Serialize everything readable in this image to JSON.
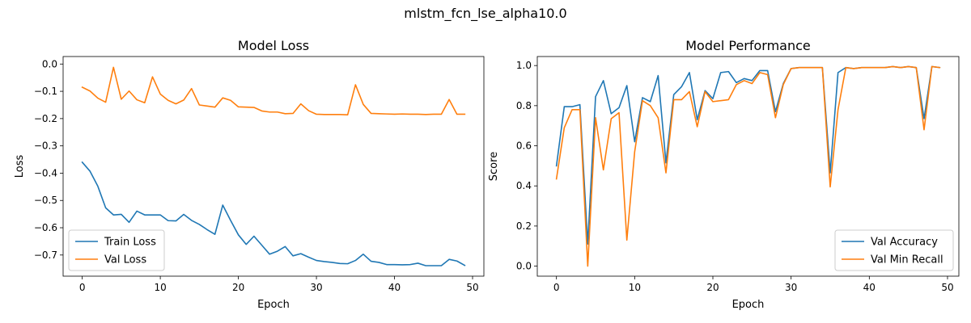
{
  "suptitle": "mlstm_fcn_lse_alpha10.0",
  "colors": {
    "blue": "#1f77b4",
    "orange": "#ff7f0e",
    "axis": "#000000",
    "legend_border": "#cccccc"
  },
  "chart_data": [
    {
      "type": "line",
      "title": "Model Loss",
      "xlabel": "Epoch",
      "ylabel": "Loss",
      "xlim": [
        -2.45,
        51.45
      ],
      "ylim": [
        -0.7775,
        0.0275
      ],
      "xticks": [
        0,
        10,
        20,
        30,
        40,
        50
      ],
      "xtick_labels": [
        "0",
        "10",
        "20",
        "30",
        "40",
        "50"
      ],
      "yticks": [
        -0.7,
        -0.6,
        -0.5,
        -0.4,
        -0.3,
        -0.2,
        -0.1,
        0.0
      ],
      "ytick_labels": [
        "−0.7",
        "−0.6",
        "−0.5",
        "−0.4",
        "−0.3",
        "−0.2",
        "−0.1",
        "0.0"
      ],
      "grid": false,
      "legend_position": "lower-left",
      "x": [
        0,
        1,
        2,
        3,
        4,
        5,
        6,
        7,
        8,
        9,
        10,
        11,
        12,
        13,
        14,
        15,
        16,
        17,
        18,
        19,
        20,
        21,
        22,
        23,
        24,
        25,
        26,
        27,
        28,
        29,
        30,
        31,
        32,
        33,
        34,
        35,
        36,
        37,
        38,
        39,
        40,
        41,
        42,
        43,
        44,
        45,
        46,
        47,
        48,
        49
      ],
      "series": [
        {
          "name": "Train Loss",
          "color": "#1f77b4",
          "values": [
            -0.36,
            -0.393,
            -0.448,
            -0.527,
            -0.553,
            -0.551,
            -0.58,
            -0.539,
            -0.553,
            -0.553,
            -0.553,
            -0.574,
            -0.575,
            -0.551,
            -0.573,
            -0.588,
            -0.607,
            -0.624,
            -0.517,
            -0.573,
            -0.626,
            -0.661,
            -0.631,
            -0.664,
            -0.697,
            -0.686,
            -0.669,
            -0.703,
            -0.695,
            -0.708,
            -0.72,
            -0.724,
            -0.727,
            -0.731,
            -0.732,
            -0.72,
            -0.697,
            -0.723,
            -0.727,
            -0.735,
            -0.735,
            -0.736,
            -0.735,
            -0.73,
            -0.739,
            -0.739,
            -0.739,
            -0.716,
            -0.722,
            -0.738
          ]
        },
        {
          "name": "Val Loss",
          "color": "#ff7f0e",
          "values": [
            -0.085,
            -0.099,
            -0.125,
            -0.14,
            -0.012,
            -0.129,
            -0.099,
            -0.131,
            -0.142,
            -0.047,
            -0.11,
            -0.133,
            -0.146,
            -0.132,
            -0.09,
            -0.15,
            -0.154,
            -0.158,
            -0.124,
            -0.133,
            -0.157,
            -0.158,
            -0.159,
            -0.172,
            -0.176,
            -0.176,
            -0.182,
            -0.181,
            -0.146,
            -0.171,
            -0.184,
            -0.185,
            -0.185,
            -0.185,
            -0.186,
            -0.076,
            -0.148,
            -0.181,
            -0.182,
            -0.183,
            -0.184,
            -0.183,
            -0.184,
            -0.184,
            -0.185,
            -0.184,
            -0.184,
            -0.13,
            -0.184,
            -0.184
          ]
        }
      ]
    },
    {
      "type": "line",
      "title": "Model Performance",
      "xlabel": "Epoch",
      "ylabel": "Score",
      "xlim": [
        -2.45,
        51.45
      ],
      "ylim": [
        -0.05,
        1.045
      ],
      "xticks": [
        0,
        10,
        20,
        30,
        40,
        50
      ],
      "xtick_labels": [
        "0",
        "10",
        "20",
        "30",
        "40",
        "50"
      ],
      "yticks": [
        0.0,
        0.2,
        0.4,
        0.6,
        0.8,
        1.0
      ],
      "ytick_labels": [
        "0.0",
        "0.2",
        "0.4",
        "0.6",
        "0.8",
        "1.0"
      ],
      "grid": false,
      "legend_position": "lower-right",
      "x": [
        0,
        1,
        2,
        3,
        4,
        5,
        6,
        7,
        8,
        9,
        10,
        11,
        12,
        13,
        14,
        15,
        16,
        17,
        18,
        19,
        20,
        21,
        22,
        23,
        24,
        25,
        26,
        27,
        28,
        29,
        30,
        31,
        32,
        33,
        34,
        35,
        36,
        37,
        38,
        39,
        40,
        41,
        42,
        43,
        44,
        45,
        46,
        47,
        48,
        49
      ],
      "series": [
        {
          "name": "Val Accuracy",
          "color": "#1f77b4",
          "values": [
            0.5,
            0.795,
            0.795,
            0.805,
            0.11,
            0.845,
            0.925,
            0.76,
            0.79,
            0.9,
            0.62,
            0.84,
            0.82,
            0.95,
            0.515,
            0.855,
            0.895,
            0.965,
            0.73,
            0.875,
            0.835,
            0.965,
            0.97,
            0.915,
            0.935,
            0.925,
            0.975,
            0.975,
            0.77,
            0.91,
            0.985,
            0.99,
            0.99,
            0.99,
            0.99,
            0.465,
            0.965,
            0.99,
            0.985,
            0.99,
            0.99,
            0.99,
            0.99,
            0.995,
            0.99,
            0.995,
            0.99,
            0.735,
            0.995,
            0.99
          ]
        },
        {
          "name": "Val Min Recall",
          "color": "#ff7f0e",
          "values": [
            0.435,
            0.69,
            0.78,
            0.78,
            0.0,
            0.74,
            0.48,
            0.735,
            0.765,
            0.13,
            0.57,
            0.825,
            0.8,
            0.74,
            0.465,
            0.83,
            0.83,
            0.87,
            0.695,
            0.87,
            0.82,
            0.825,
            0.83,
            0.905,
            0.925,
            0.91,
            0.965,
            0.955,
            0.74,
            0.905,
            0.985,
            0.99,
            0.99,
            0.99,
            0.99,
            0.395,
            0.78,
            0.99,
            0.985,
            0.99,
            0.99,
            0.99,
            0.99,
            0.995,
            0.99,
            0.995,
            0.99,
            0.68,
            0.995,
            0.99
          ]
        }
      ]
    }
  ]
}
